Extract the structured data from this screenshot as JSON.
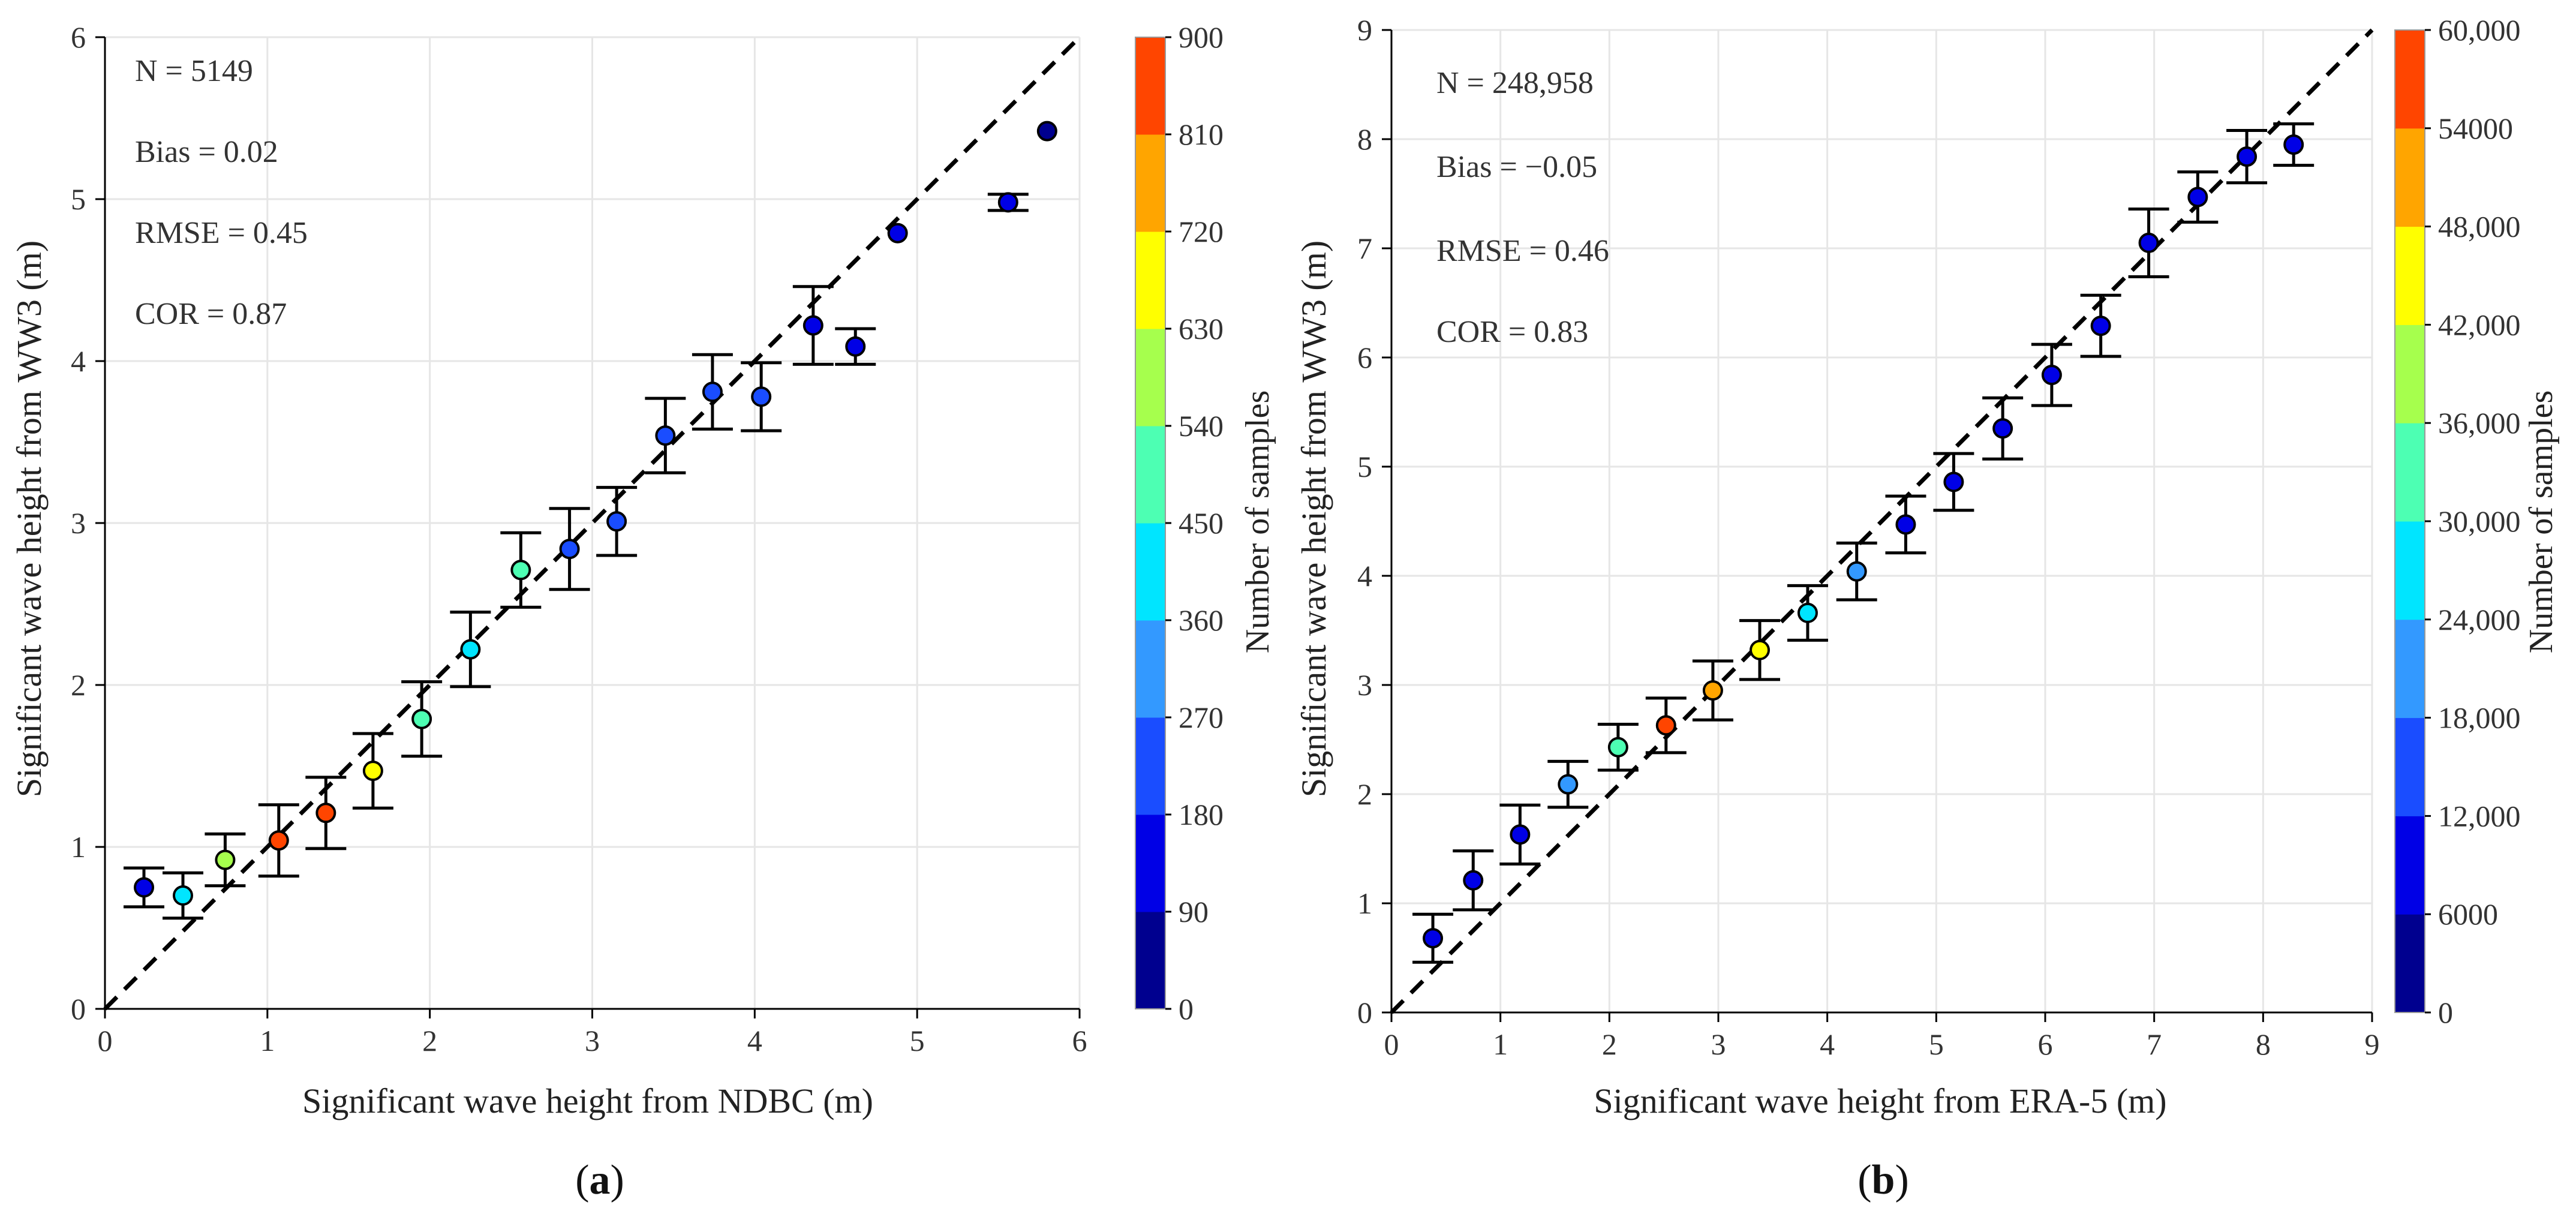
{
  "colors": {
    "colormap": [
      "#00008f",
      "#0000e6",
      "#1a4dff",
      "#3399ff",
      "#00e5ff",
      "#4dffb3",
      "#a6ff4d",
      "#ffff00",
      "#ffa500",
      "#ff4500"
    ]
  },
  "chart_data": [
    {
      "type": "scatter",
      "panel_label": "(a)",
      "panel_letter": "a",
      "xlabel": "Significant wave height from NDBC (m)",
      "ylabel": "Significant wave height from WW3 (m)",
      "xlim": [
        0,
        6
      ],
      "ylim": [
        0,
        6
      ],
      "xticks": [
        "0",
        "1",
        "2",
        "3",
        "4",
        "5",
        "6"
      ],
      "yticks": [
        "0",
        "1",
        "2",
        "3",
        "4",
        "5",
        "6"
      ],
      "stats": [
        "N = 5149",
        "Bias = 0.02",
        "RMSE = 0.45",
        "COR = 0.87"
      ],
      "colorbar": {
        "title": "Number of samples",
        "min": 0,
        "max": 900,
        "ticks": [
          "0",
          "90",
          "180",
          "270",
          "360",
          "450",
          "540",
          "630",
          "720",
          "810",
          "900"
        ]
      },
      "points": [
        {
          "x": 0.24,
          "y": 0.75,
          "err": 0.12,
          "n": 160
        },
        {
          "x": 0.48,
          "y": 0.7,
          "err": 0.14,
          "n": 420
        },
        {
          "x": 0.74,
          "y": 0.92,
          "err": 0.16,
          "n": 600
        },
        {
          "x": 1.07,
          "y": 1.04,
          "err": 0.22,
          "n": 860
        },
        {
          "x": 1.36,
          "y": 1.21,
          "err": 0.22,
          "n": 840
        },
        {
          "x": 1.65,
          "y": 1.47,
          "err": 0.23,
          "n": 680
        },
        {
          "x": 1.95,
          "y": 1.79,
          "err": 0.23,
          "n": 520
        },
        {
          "x": 2.25,
          "y": 2.22,
          "err": 0.23,
          "n": 440
        },
        {
          "x": 2.56,
          "y": 2.71,
          "err": 0.23,
          "n": 510
        },
        {
          "x": 2.86,
          "y": 2.84,
          "err": 0.25,
          "n": 240
        },
        {
          "x": 3.15,
          "y": 3.01,
          "err": 0.21,
          "n": 230
        },
        {
          "x": 3.45,
          "y": 3.54,
          "err": 0.23,
          "n": 210
        },
        {
          "x": 3.74,
          "y": 3.81,
          "err": 0.23,
          "n": 190
        },
        {
          "x": 4.04,
          "y": 3.78,
          "err": 0.21,
          "n": 180
        },
        {
          "x": 4.36,
          "y": 4.22,
          "err": 0.24,
          "n": 160
        },
        {
          "x": 4.62,
          "y": 4.09,
          "err": 0.11,
          "n": 140
        },
        {
          "x": 4.88,
          "y": 4.79,
          "err": 0,
          "n": 120
        },
        {
          "x": 5.56,
          "y": 4.98,
          "err": 0.05,
          "n": 100
        },
        {
          "x": 5.8,
          "y": 5.42,
          "err": 0,
          "n": 80
        }
      ]
    },
    {
      "type": "scatter",
      "panel_label": "(b)",
      "panel_letter": "b",
      "xlabel": "Significant wave height from ERA-5 (m)",
      "ylabel": "Significant wave height from WW3 (m)",
      "xlim": [
        0,
        9
      ],
      "ylim": [
        0,
        9
      ],
      "xticks": [
        "0",
        "1",
        "2",
        "3",
        "4",
        "5",
        "6",
        "7",
        "8",
        "9"
      ],
      "yticks": [
        "0",
        "1",
        "2",
        "3",
        "4",
        "5",
        "6",
        "7",
        "8",
        "9"
      ],
      "stats": [
        "N = 248,958",
        "Bias = −0.05",
        "RMSE = 0.46",
        "COR = 0.83"
      ],
      "colorbar": {
        "title": "Number of samples",
        "min": 0,
        "max": 60000,
        "ticks": [
          "0",
          "6000",
          "12,000",
          "18,000",
          "24,000",
          "30,000",
          "36,000",
          "42,000",
          "48,000",
          "54000",
          "60,000"
        ]
      },
      "points": [
        {
          "x": 0.38,
          "y": 0.68,
          "err": 0.22,
          "n": 9000
        },
        {
          "x": 0.75,
          "y": 1.21,
          "err": 0.27,
          "n": 10000
        },
        {
          "x": 1.18,
          "y": 1.63,
          "err": 0.27,
          "n": 11000
        },
        {
          "x": 1.62,
          "y": 2.09,
          "err": 0.21,
          "n": 21000
        },
        {
          "x": 2.08,
          "y": 2.43,
          "err": 0.21,
          "n": 33000
        },
        {
          "x": 2.52,
          "y": 2.63,
          "err": 0.25,
          "n": 57000
        },
        {
          "x": 2.95,
          "y": 2.95,
          "err": 0.27,
          "n": 51000
        },
        {
          "x": 3.38,
          "y": 3.32,
          "err": 0.27,
          "n": 45000
        },
        {
          "x": 3.82,
          "y": 3.66,
          "err": 0.25,
          "n": 28000
        },
        {
          "x": 4.27,
          "y": 4.04,
          "err": 0.26,
          "n": 22000
        },
        {
          "x": 4.72,
          "y": 4.47,
          "err": 0.26,
          "n": 11000
        },
        {
          "x": 5.16,
          "y": 4.86,
          "err": 0.26,
          "n": 9000
        },
        {
          "x": 5.61,
          "y": 5.35,
          "err": 0.28,
          "n": 8500
        },
        {
          "x": 6.06,
          "y": 5.84,
          "err": 0.28,
          "n": 8000
        },
        {
          "x": 6.51,
          "y": 6.29,
          "err": 0.28,
          "n": 7500
        },
        {
          "x": 6.95,
          "y": 7.05,
          "err": 0.31,
          "n": 7000
        },
        {
          "x": 7.4,
          "y": 7.47,
          "err": 0.23,
          "n": 6500
        },
        {
          "x": 7.85,
          "y": 7.84,
          "err": 0.24,
          "n": 6000
        },
        {
          "x": 8.28,
          "y": 7.95,
          "err": 0.19,
          "n": 6000
        }
      ]
    }
  ]
}
